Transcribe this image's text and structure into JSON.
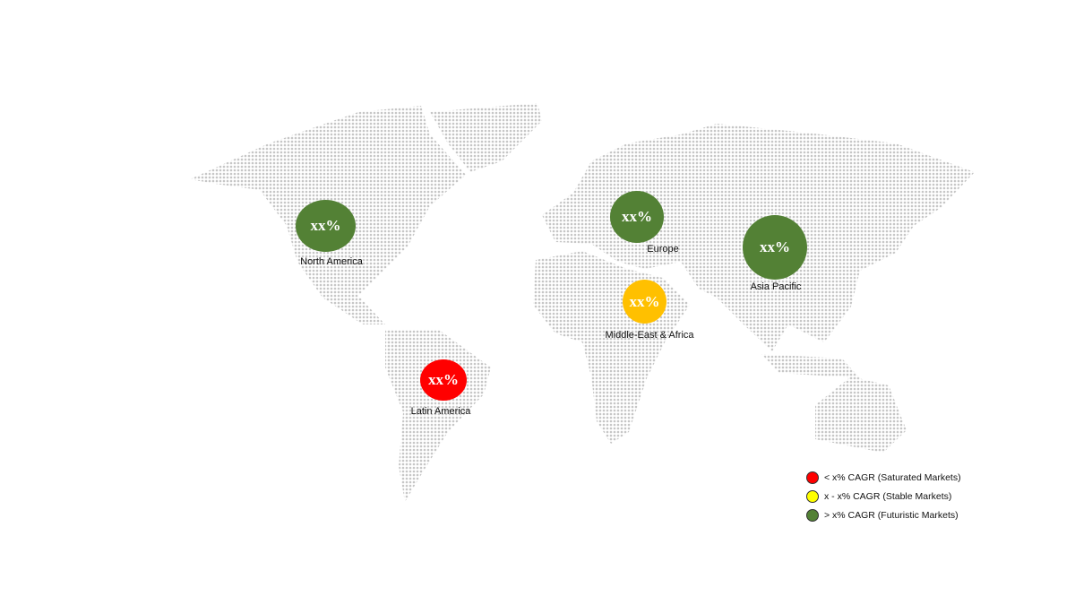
{
  "colors": {
    "saturated": "#FF0000",
    "stable": "#FFFF00",
    "futuristic": "#538135",
    "map_dots": "#c6c6c6",
    "mea_bubble": "#FFC000"
  },
  "regions": [
    {
      "name": "North America",
      "value": "xx%",
      "category": "futuristic"
    },
    {
      "name": "Europe",
      "value": "xx%",
      "category": "futuristic"
    },
    {
      "name": "Asia Pacific",
      "value": "xx%",
      "category": "futuristic"
    },
    {
      "name": "Middle-East & Africa",
      "value": "xx%",
      "category": "stable"
    },
    {
      "name": "Latin America",
      "value": "xx%",
      "category": "saturated"
    }
  ],
  "legend": [
    {
      "label": "< x% CAGR (Saturated Markets)",
      "color": "#FF0000"
    },
    {
      "label": "x - x% CAGR (Stable Markets)",
      "color": "#FFFF00"
    },
    {
      "label": "> x% CAGR (Futuristic Markets)",
      "color": "#538135"
    }
  ]
}
